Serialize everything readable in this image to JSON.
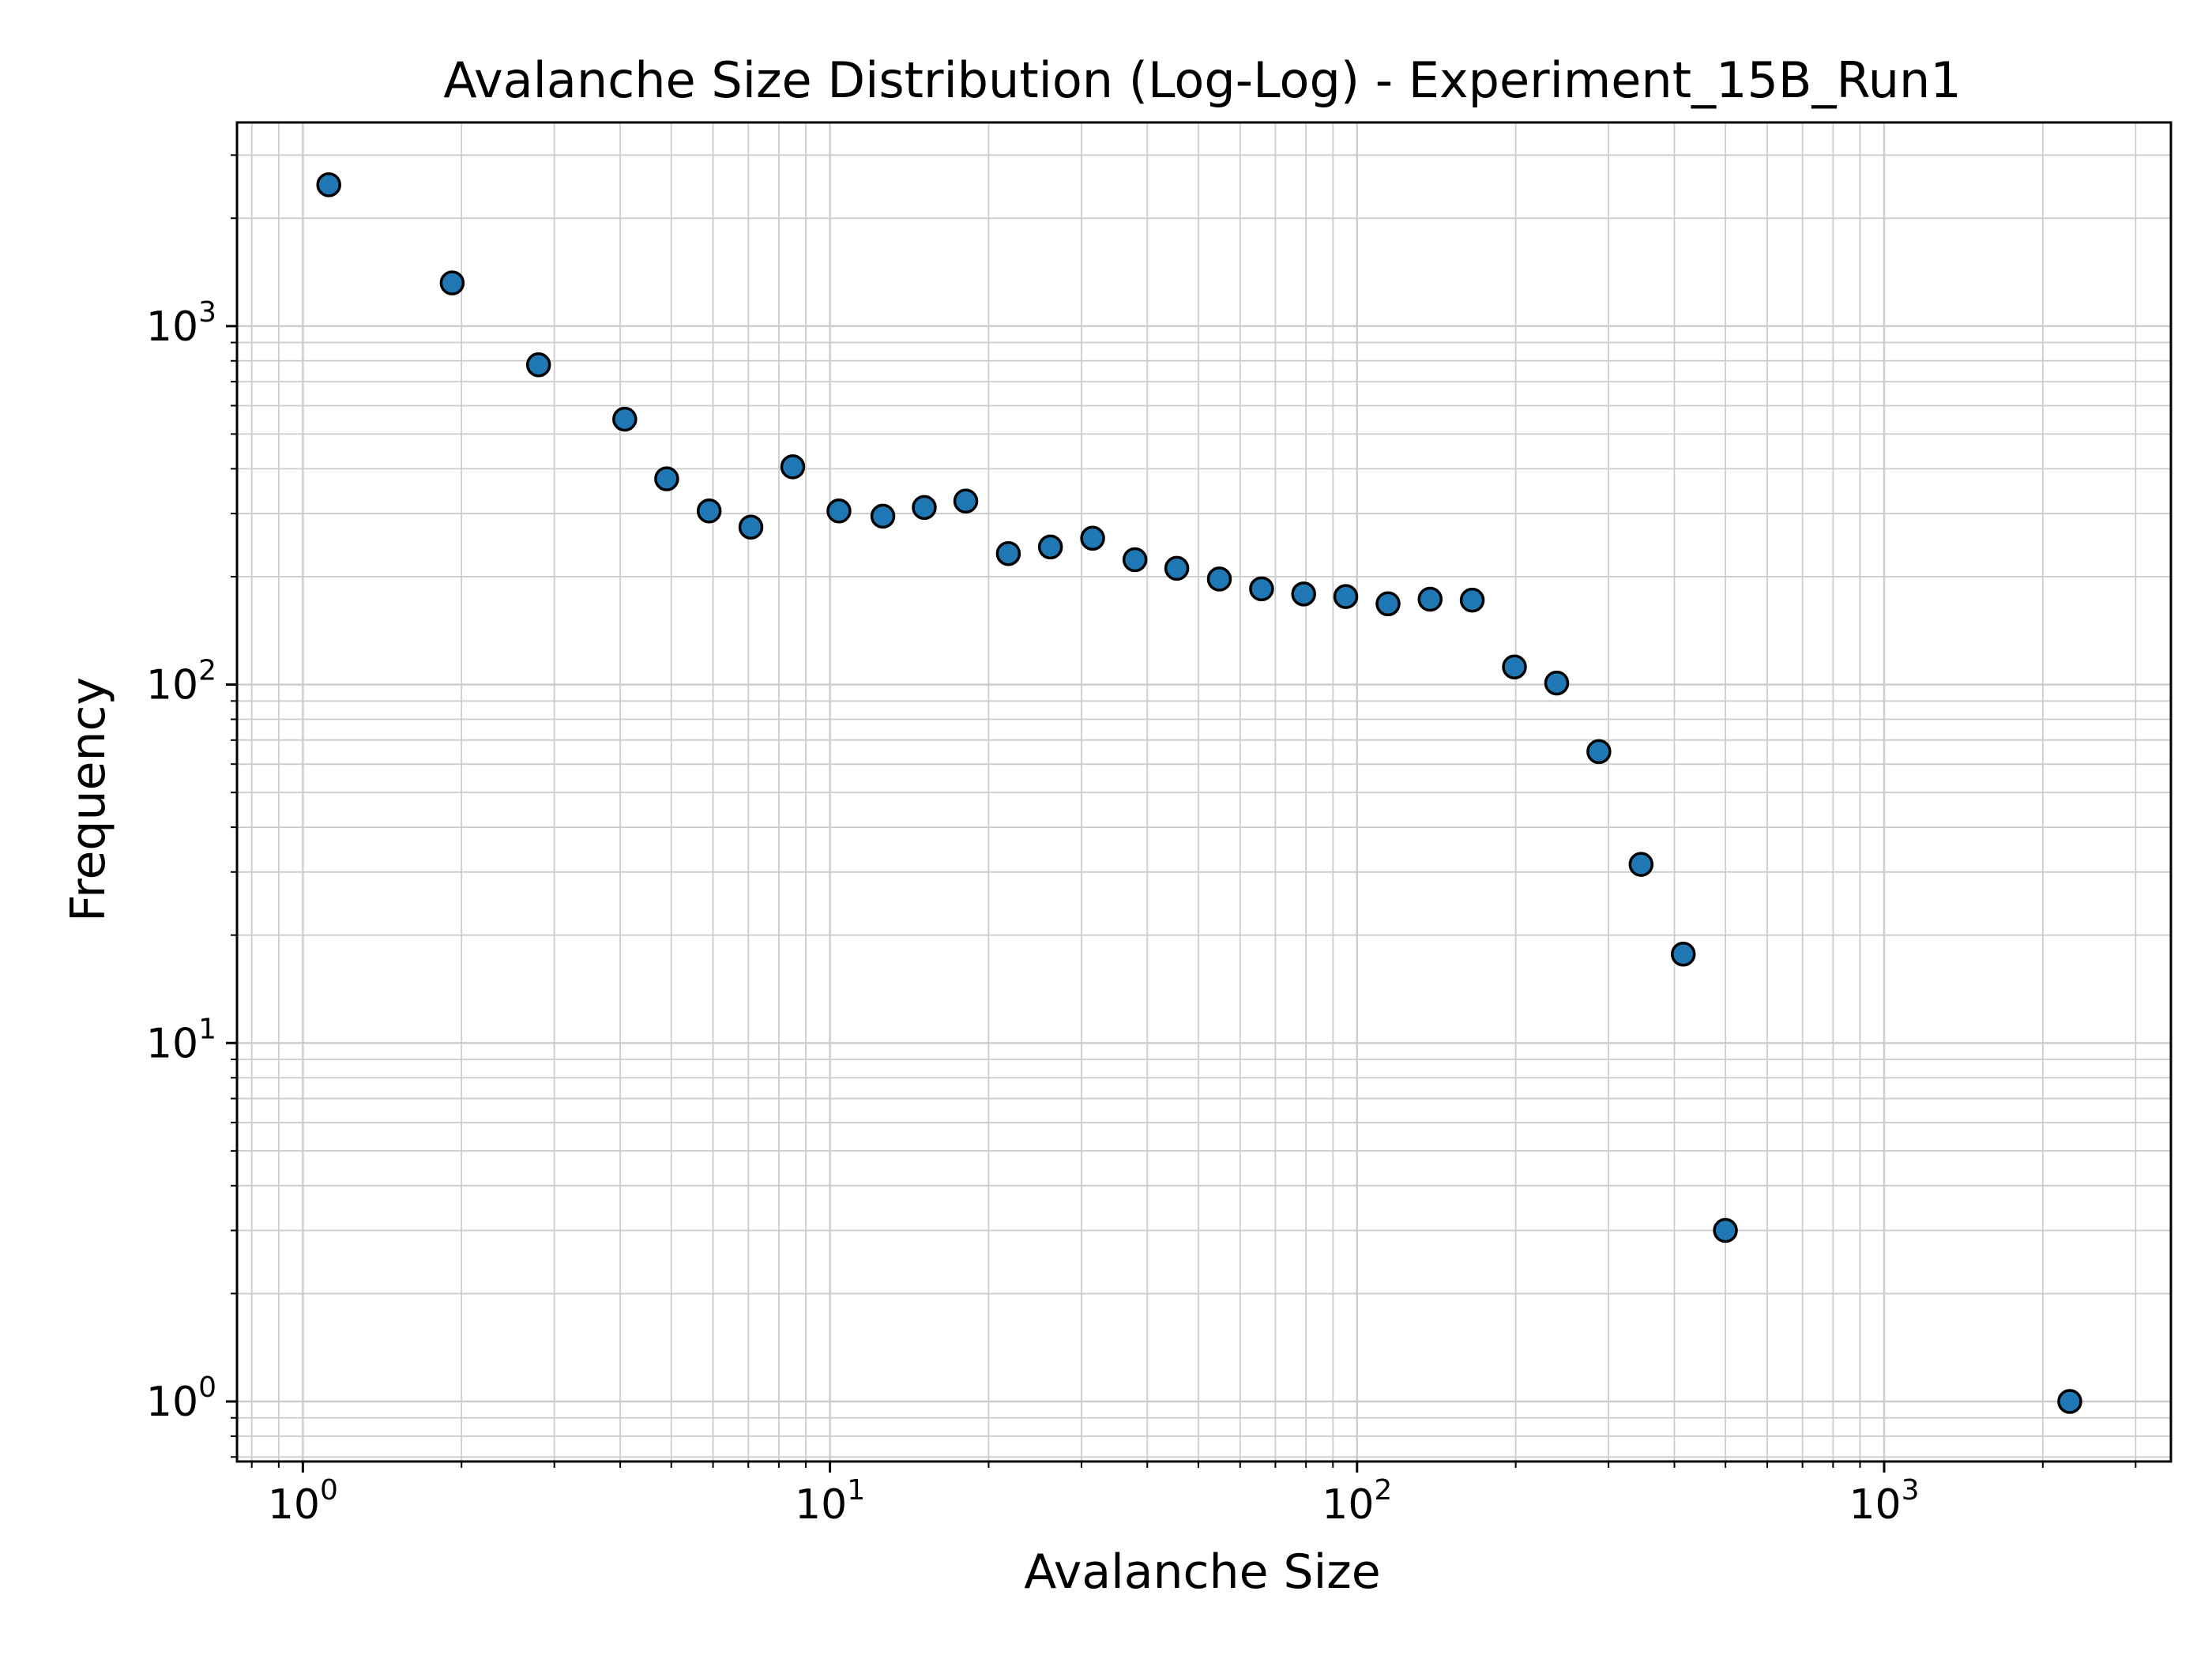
{
  "chart_data": {
    "type": "scatter",
    "title": "Avalanche Size Distribution (Log-Log) - Experiment_15B_Run1",
    "xlabel": "Avalanche Size",
    "ylabel": "Frequency",
    "xscale": "log",
    "yscale": "log",
    "xlim": [
      0.75,
      3500
    ],
    "ylim": [
      0.68,
      3700
    ],
    "grid": "major and minor",
    "x_ticks": [
      {
        "base": "10",
        "exp": "0",
        "value": 1
      },
      {
        "base": "10",
        "exp": "1",
        "value": 10
      },
      {
        "base": "10",
        "exp": "2",
        "value": 100
      },
      {
        "base": "10",
        "exp": "3",
        "value": 1000
      }
    ],
    "y_ticks": [
      {
        "base": "10",
        "exp": "0",
        "value": 1
      },
      {
        "base": "10",
        "exp": "1",
        "value": 10
      },
      {
        "base": "10",
        "exp": "2",
        "value": 100
      },
      {
        "base": "10",
        "exp": "3",
        "value": 1000
      }
    ],
    "marker_color": "#1f77b4",
    "marker_edge_color": "#000000",
    "points": [
      {
        "x": 1.12,
        "y": 2480
      },
      {
        "x": 1.92,
        "y": 1320
      },
      {
        "x": 2.8,
        "y": 780
      },
      {
        "x": 4.08,
        "y": 550
      },
      {
        "x": 4.9,
        "y": 375
      },
      {
        "x": 5.9,
        "y": 305
      },
      {
        "x": 7.08,
        "y": 275
      },
      {
        "x": 8.5,
        "y": 405
      },
      {
        "x": 10.4,
        "y": 305
      },
      {
        "x": 12.6,
        "y": 295
      },
      {
        "x": 15.1,
        "y": 312
      },
      {
        "x": 18.1,
        "y": 325
      },
      {
        "x": 21.8,
        "y": 232
      },
      {
        "x": 26.2,
        "y": 242
      },
      {
        "x": 31.5,
        "y": 256
      },
      {
        "x": 37.9,
        "y": 223
      },
      {
        "x": 45.5,
        "y": 211
      },
      {
        "x": 54.8,
        "y": 197
      },
      {
        "x": 65.9,
        "y": 185
      },
      {
        "x": 79.2,
        "y": 179
      },
      {
        "x": 95.2,
        "y": 176
      },
      {
        "x": 114.5,
        "y": 168
      },
      {
        "x": 137.6,
        "y": 173
      },
      {
        "x": 165.4,
        "y": 172
      },
      {
        "x": 198.9,
        "y": 112
      },
      {
        "x": 239.2,
        "y": 101
      },
      {
        "x": 287.6,
        "y": 65
      },
      {
        "x": 345.8,
        "y": 31.5
      },
      {
        "x": 415.8,
        "y": 17.7
      },
      {
        "x": 499.9,
        "y": 3
      },
      {
        "x": 2250,
        "y": 1
      }
    ]
  }
}
